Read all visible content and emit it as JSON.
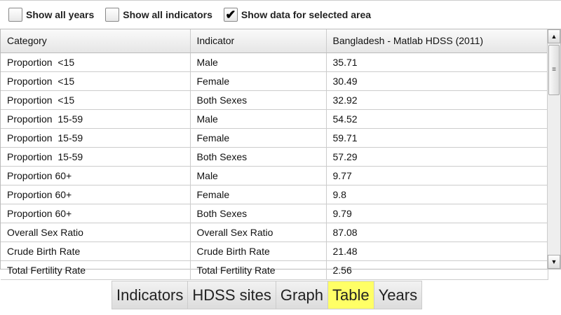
{
  "options": [
    {
      "label": "Show all years",
      "checked": false
    },
    {
      "label": "Show all indicators",
      "checked": false
    },
    {
      "label": "Show data for selected area",
      "checked": true
    }
  ],
  "checkmark": "✔",
  "table": {
    "headers": [
      "Category",
      "Indicator",
      "Bangladesh - Matlab HDSS (2011)"
    ],
    "rows": [
      [
        "Proportion  <15",
        "Male",
        "35.71"
      ],
      [
        "Proportion  <15",
        "Female",
        "30.49"
      ],
      [
        "Proportion  <15",
        "Both Sexes",
        "32.92"
      ],
      [
        "Proportion  15-59",
        "Male",
        "54.52"
      ],
      [
        "Proportion  15-59",
        "Female",
        "59.71"
      ],
      [
        "Proportion  15-59",
        "Both Sexes",
        "57.29"
      ],
      [
        "Proportion 60+",
        "Male",
        "9.77"
      ],
      [
        "Proportion 60+",
        "Female",
        "9.8"
      ],
      [
        "Proportion 60+",
        "Both Sexes",
        "9.79"
      ],
      [
        "Overall Sex Ratio",
        "Overall Sex Ratio",
        "87.08"
      ],
      [
        "Crude Birth Rate",
        "Crude Birth Rate",
        "21.48"
      ],
      [
        "Total Fertility Rate",
        "Total Fertility Rate",
        "2.56"
      ]
    ]
  },
  "scrollbar": {
    "up": "▲",
    "down": "▼",
    "grip": "≡"
  },
  "tabs": [
    {
      "label": "Indicators",
      "active": false
    },
    {
      "label": "HDSS sites",
      "active": false
    },
    {
      "label": "Graph",
      "active": false
    },
    {
      "label": "Table",
      "active": true
    },
    {
      "label": "Years",
      "active": false
    }
  ],
  "colors": {
    "active_tab": "#ffff66"
  }
}
